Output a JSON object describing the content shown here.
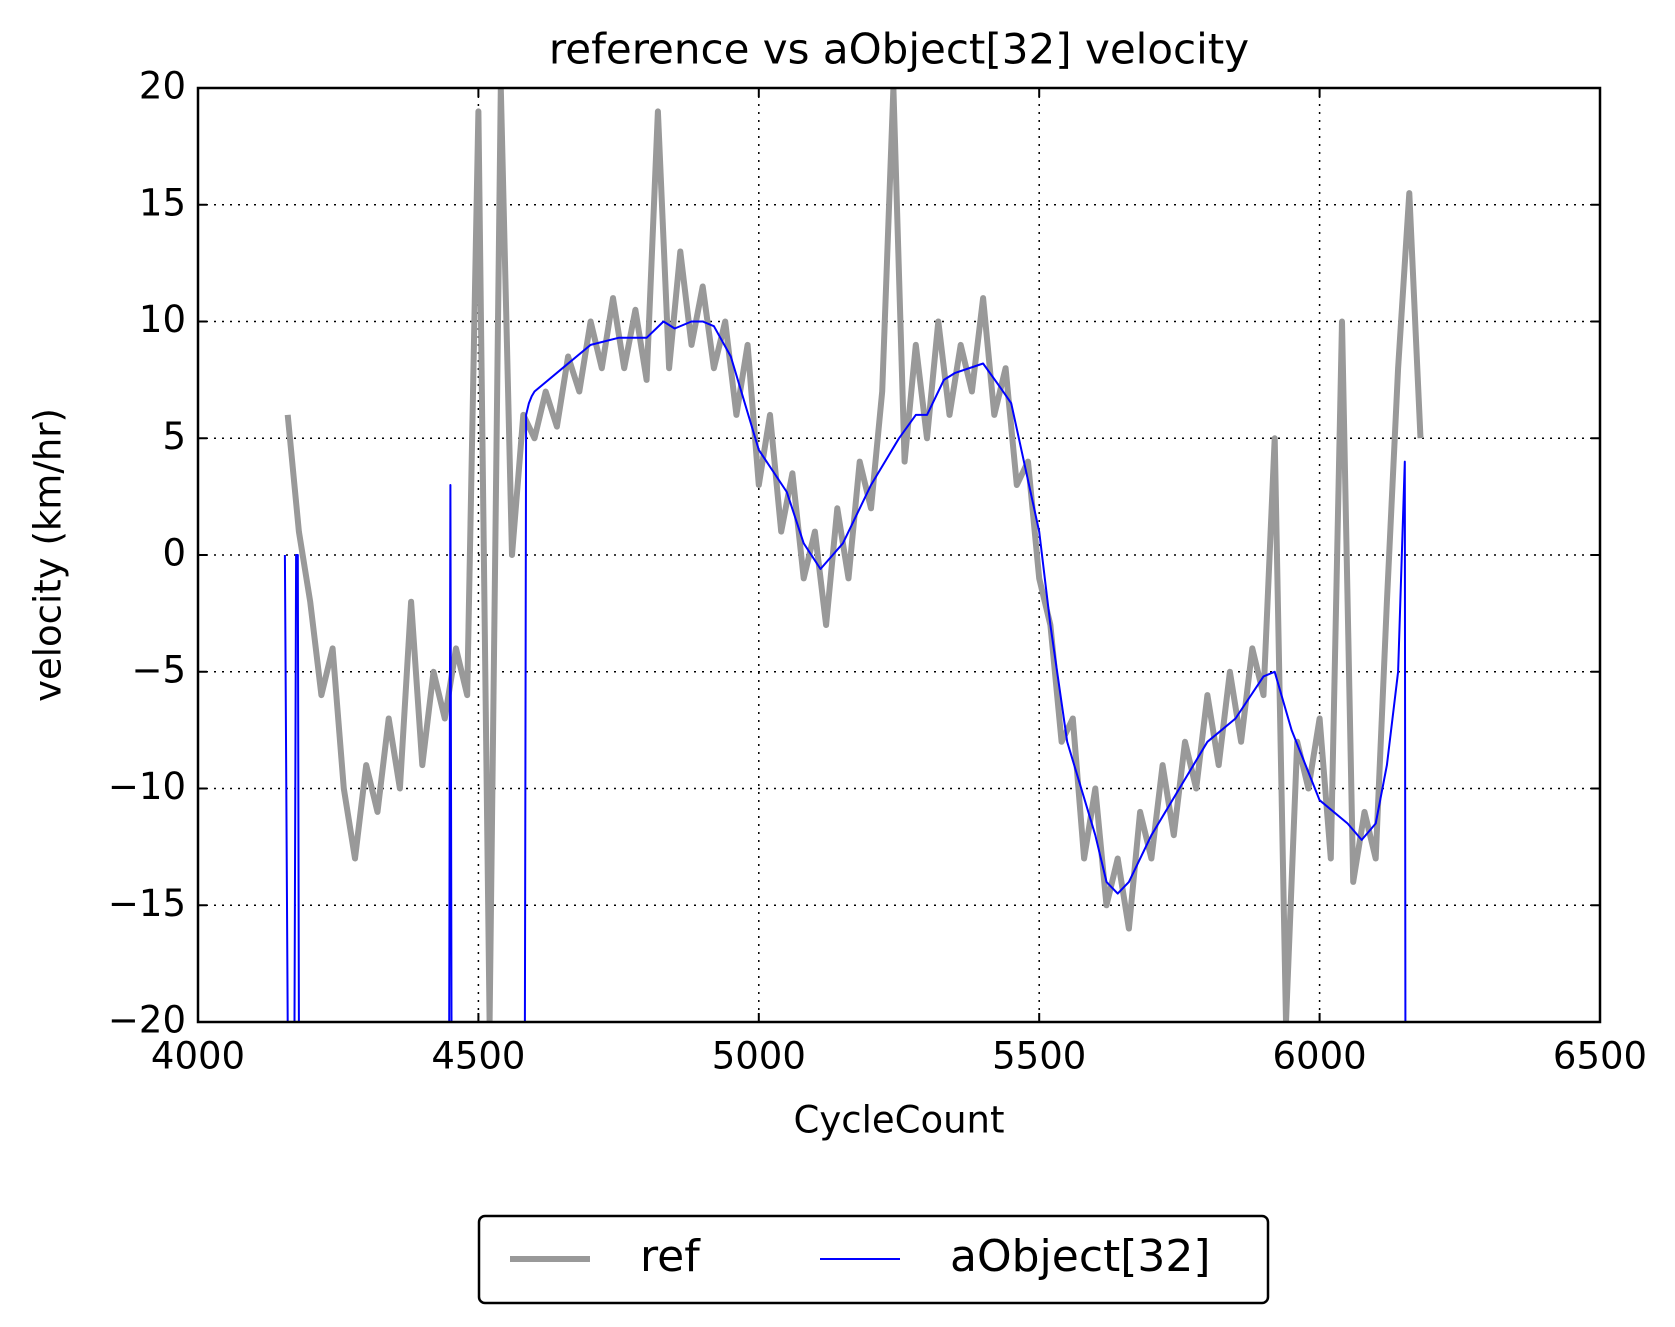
{
  "chart_data": {
    "type": "line",
    "title": "reference vs aObject[32] velocity",
    "xlabel": "CycleCount",
    "ylabel": "velocity (km/hr)",
    "xlim": [
      4000,
      6500
    ],
    "ylim": [
      -20,
      20
    ],
    "xticks": [
      4000,
      4500,
      5000,
      5500,
      6000,
      6500
    ],
    "yticks": [
      {
        "value": -20,
        "label": "−20"
      },
      {
        "value": -15,
        "label": "−15"
      },
      {
        "value": -10,
        "label": "−10"
      },
      {
        "value": -5,
        "label": "−5"
      },
      0,
      5,
      10,
      15,
      20
    ],
    "grid": true,
    "legend": "bottom",
    "series": [
      {
        "name": "ref",
        "color": "#999999",
        "width": 6,
        "x": [
          4160,
          4180,
          4200,
          4220,
          4240,
          4260,
          4280,
          4300,
          4320,
          4340,
          4360,
          4380,
          4400,
          4420,
          4440,
          4460,
          4480,
          4500,
          4520,
          4540,
          4560,
          4580,
          4600,
          4620,
          4640,
          4660,
          4680,
          4700,
          4720,
          4740,
          4760,
          4780,
          4800,
          4820,
          4840,
          4860,
          4880,
          4900,
          4920,
          4940,
          4960,
          4980,
          5000,
          5020,
          5040,
          5060,
          5080,
          5100,
          5120,
          5140,
          5160,
          5180,
          5200,
          5220,
          5240,
          5260,
          5280,
          5300,
          5320,
          5340,
          5360,
          5380,
          5400,
          5420,
          5440,
          5460,
          5480,
          5500,
          5520,
          5540,
          5560,
          5580,
          5600,
          5620,
          5640,
          5660,
          5680,
          5700,
          5720,
          5740,
          5760,
          5780,
          5800,
          5820,
          5840,
          5860,
          5880,
          5900,
          5920,
          5940,
          5960,
          5980,
          6000,
          6020,
          6040,
          6060,
          6080,
          6100,
          6120,
          6140,
          6160,
          6180
        ],
        "values": [
          6,
          1,
          -2,
          -6,
          -4,
          -10,
          -13,
          -9,
          -11,
          -7,
          -10,
          -2,
          -9,
          -5,
          -7,
          -4,
          -6,
          19,
          -20,
          20,
          0,
          6,
          5,
          7,
          5.5,
          8.5,
          7,
          10,
          8,
          11,
          8,
          10.5,
          7.5,
          19,
          8,
          13,
          9,
          11.5,
          8,
          10,
          6,
          9,
          3,
          6,
          1,
          3.5,
          -1,
          1,
          -3,
          2,
          -1,
          4,
          2,
          7,
          20,
          4,
          9,
          5,
          10,
          6,
          9,
          7,
          11,
          6,
          8,
          3,
          4,
          -1,
          -3,
          -8,
          -7,
          -13,
          -10,
          -15,
          -13,
          -16,
          -11,
          -13,
          -9,
          -12,
          -8,
          -10,
          -6,
          -9,
          -5,
          -8,
          -4,
          -6,
          5,
          -20,
          -8,
          -10,
          -7,
          -13,
          10,
          -14,
          -11,
          -13,
          -2,
          8,
          15.5,
          5
        ]
      },
      {
        "name": "aObject[32]",
        "color": "#0000ff",
        "width": 2,
        "x": [
          4155,
          4160,
          4172,
          4175,
          4178,
          4180,
          4448,
          4450,
          4452,
          4583,
          4585,
          4590,
          4595,
          4600,
          4650,
          4700,
          4750,
          4800,
          4830,
          4850,
          4880,
          4900,
          4920,
          4950,
          5000,
          5050,
          5080,
          5110,
          5150,
          5200,
          5250,
          5280,
          5300,
          5330,
          5350,
          5400,
          5430,
          5450,
          5500,
          5520,
          5550,
          5600,
          5620,
          5640,
          5660,
          5700,
          5750,
          5800,
          5850,
          5900,
          5920,
          5950,
          6000,
          6050,
          6075,
          6100,
          6120,
          6140,
          6152,
          6153
        ],
        "values": [
          0,
          -20,
          -20,
          0,
          0,
          -20,
          -20,
          3,
          -20,
          -20,
          6,
          6.5,
          6.8,
          7,
          8,
          9,
          9.3,
          9.3,
          10,
          9.7,
          10,
          10,
          9.8,
          8.5,
          4.5,
          2.7,
          0.5,
          -0.6,
          0.5,
          3,
          5,
          6,
          6,
          7.5,
          7.8,
          8.2,
          7.2,
          6.5,
          1,
          -3,
          -8,
          -12,
          -14,
          -14.5,
          -14,
          -12,
          -10,
          -8,
          -7,
          -5.2,
          -5,
          -7.5,
          -10.5,
          -11.5,
          -12.2,
          -11.5,
          -9,
          -5,
          4,
          -20
        ]
      }
    ]
  }
}
